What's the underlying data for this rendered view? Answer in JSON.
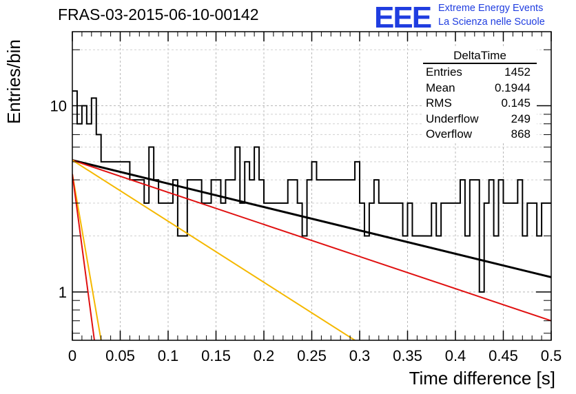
{
  "title": "FRAS-03-2015-06-10-00142",
  "logo": {
    "mark": "EEE",
    "line1": "Extreme Energy Events",
    "line2": "La Scienza nelle Scuole",
    "color": "#1f3de0"
  },
  "stats": {
    "title": "DeltaTime",
    "rows": [
      {
        "label": "Entries",
        "value": "1452"
      },
      {
        "label": "Mean",
        "value": "0.1944"
      },
      {
        "label": "RMS",
        "value": "0.145"
      },
      {
        "label": "Underflow",
        "value": "249"
      },
      {
        "label": "Overflow",
        "value": "868"
      }
    ]
  },
  "chart_data": {
    "type": "line",
    "title": "FRAS-03-2015-06-10-00142",
    "xlabel": "Time difference [s]",
    "ylabel": "Entries/bin",
    "xlim": [
      0,
      0.5
    ],
    "ylim": [
      0.55,
      25
    ],
    "y_scale": "log",
    "grid": true,
    "x_ticks": [
      "0",
      "0.05",
      "0.1",
      "0.15",
      "0.2",
      "0.25",
      "0.3",
      "0.35",
      "0.4",
      "0.45",
      "0.5"
    ],
    "y_ticks": [
      "1",
      "10"
    ],
    "histogram": {
      "name": "DeltaTime",
      "bin_width": 0.005,
      "color": "#000000",
      "values": [
        12,
        8,
        10,
        8,
        11,
        7,
        5,
        5,
        5,
        5,
        5,
        5,
        4,
        4,
        4,
        3,
        6,
        4,
        3,
        3,
        3,
        4,
        2,
        2,
        4,
        4,
        4,
        3,
        3,
        4,
        4,
        3,
        4,
        4,
        6,
        3,
        5,
        4,
        6,
        4,
        3,
        3,
        3,
        3,
        3,
        4,
        4,
        3,
        2,
        4,
        5,
        4,
        4,
        4,
        4,
        4,
        4,
        4,
        4,
        5,
        3,
        2,
        3,
        4,
        3,
        3,
        3,
        3,
        3,
        2,
        3,
        2,
        2,
        2,
        2,
        3,
        2,
        3,
        3,
        3,
        3,
        4,
        2,
        4,
        4,
        1,
        3,
        4,
        2,
        4,
        3,
        3,
        3,
        4,
        2,
        3,
        3,
        2,
        3,
        3
      ]
    },
    "fits": [
      {
        "name": "fit-black",
        "color": "#000000",
        "x": [
          0,
          0.5
        ],
        "y": [
          5.1,
          1.2
        ]
      },
      {
        "name": "fit-red-long",
        "color": "#e01010",
        "x": [
          0,
          0.5
        ],
        "y": [
          5.1,
          0.7
        ]
      },
      {
        "name": "fit-orange-mid",
        "color": "#f5b800",
        "x": [
          0,
          0.295
        ],
        "y": [
          5.1,
          0.55
        ]
      },
      {
        "name": "fit-orange-steep",
        "color": "#f5b800",
        "x": [
          0,
          0.03
        ],
        "y": [
          4.3,
          0.55
        ]
      },
      {
        "name": "fit-red-steep",
        "color": "#e01010",
        "x": [
          0,
          0.023
        ],
        "y": [
          4.3,
          0.55
        ]
      }
    ]
  }
}
